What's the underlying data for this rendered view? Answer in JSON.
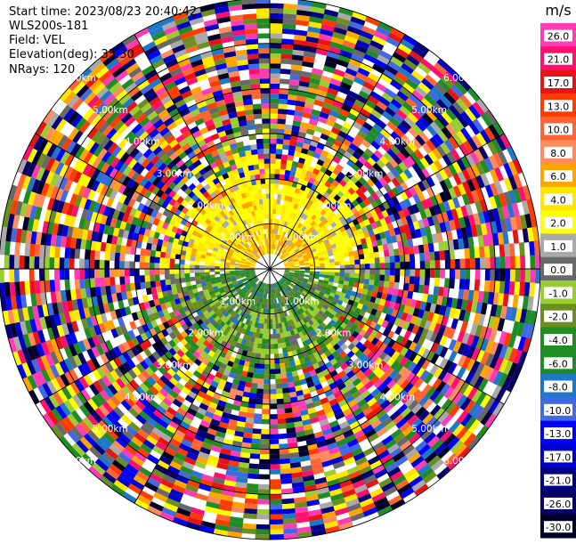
{
  "info": {
    "start_time": "Start time: 2023/08/23 20:40:42",
    "instrument": "WLS200s-181",
    "field": "Field: VEL",
    "elevation": "Elevation(deg): 35.30",
    "nrays": "NRays: 120"
  },
  "chart_data": {
    "type": "heatmap",
    "projection": "polar PPI",
    "field": "VEL",
    "unit": "m/s",
    "nrays": 120,
    "elevation_deg": 35.3,
    "max_range_km": 6.0,
    "range_rings_km": [
      1,
      2,
      3,
      4,
      5,
      6
    ],
    "ring_labels": [
      "1.00km",
      "2.00km",
      "3.00km",
      "4.00km",
      "5.00km",
      "6.00km"
    ],
    "colorbar": {
      "title": "m/s",
      "tick_labels": [
        "26.0",
        "21.0",
        "17.0",
        "13.0",
        "10.0",
        "8.0",
        "6.0",
        "4.0",
        "2.0",
        "1.0",
        "0.0",
        "-1.0",
        "-2.0",
        "-4.0",
        "-6.0",
        "-8.0",
        "-10.0",
        "-13.0",
        "-17.0",
        "-21.0",
        "-26.0",
        "-30.0"
      ],
      "colors": [
        "#ff3cb4",
        "#ff0f6e",
        "#e61414",
        "#ff3c00",
        "#ff6432",
        "#ff8c5a",
        "#ffa500",
        "#ffe600",
        "#ffff00",
        "#a9a9a9",
        "#696969",
        "#9acd32",
        "#6b8e23",
        "#228b22",
        "#1e8c28",
        "#1e78c8",
        "#4169e1",
        "#0000ff",
        "#0000cd",
        "#000080",
        "#0a0064",
        "#000028"
      ]
    },
    "pattern": {
      "near_north": "positive (yellow/orange, 2 to 8 m/s)",
      "near_south": "negative (green/gray, -1 to -6 m/s)",
      "far_range": "noisy, all values"
    }
  }
}
